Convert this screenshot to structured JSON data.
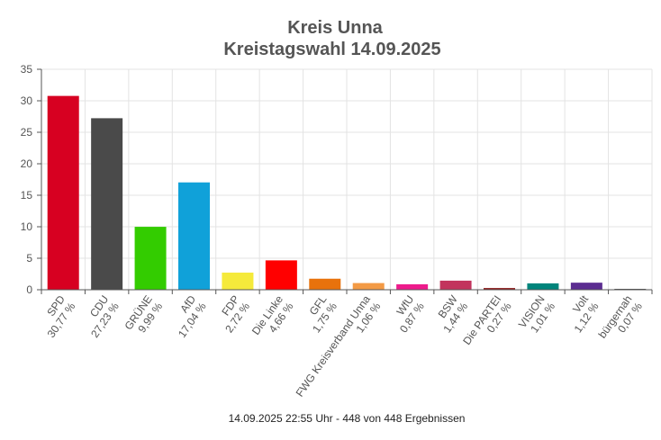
{
  "chart_data": {
    "type": "bar",
    "title": "Kreis Unna",
    "subtitle": "Kreistagswahl 14.09.2025",
    "footer": "14.09.2025 22:55 Uhr - 448 von 448 Ergebnissen",
    "ylim": [
      0,
      35
    ],
    "yticks": [
      0,
      5,
      10,
      15,
      20,
      25,
      30,
      35
    ],
    "grid": true,
    "categories": [
      "SPD",
      "CDU",
      "GRÜNE",
      "AfD",
      "FDP",
      "Die Linke",
      "GFL",
      "FWG Kreisverband Unna",
      "WfU",
      "BSW",
      "Die PARTEI",
      "VISION",
      "Volt",
      "bürgernah"
    ],
    "values": [
      30.77,
      27.23,
      9.99,
      17.04,
      2.72,
      4.66,
      1.75,
      1.06,
      0.87,
      1.44,
      0.27,
      1.01,
      1.12,
      0.07
    ],
    "value_labels": [
      "30,77 %",
      "27,23 %",
      "9,99 %",
      "17,04 %",
      "2,72 %",
      "4,66 %",
      "1,75 %",
      "1,06 %",
      "0,87 %",
      "1,44 %",
      "0,27 %",
      "1,01 %",
      "1,12 %",
      "0,07 %"
    ],
    "colors": [
      "#d70021",
      "#4a4a4a",
      "#33cc00",
      "#10a1d9",
      "#f5ea3b",
      "#ff0000",
      "#e8720c",
      "#f39a45",
      "#ee1b8c",
      "#c2345d",
      "#8c1a1a",
      "#00857c",
      "#5b2c91",
      "#555555"
    ]
  }
}
